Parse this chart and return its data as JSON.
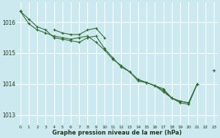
{
  "background_color": "#cde9f0",
  "grid_color": "#ffffff",
  "line_color": "#2d6a2d",
  "marker_color": "#2d6a2d",
  "xlabel": "Graphe pression niveau de la mer (hPa)",
  "xlabel_color": "#1a3a1a",
  "ylabel_color": "#1a3a1a",
  "xlim": [
    -0.5,
    23.5
  ],
  "ylim": [
    1012.7,
    1016.65
  ],
  "yticks": [
    1013,
    1014,
    1015,
    1016
  ],
  "xticks": [
    0,
    1,
    2,
    3,
    4,
    5,
    6,
    7,
    8,
    9,
    10,
    11,
    12,
    13,
    14,
    15,
    16,
    17,
    18,
    19,
    20,
    21,
    22,
    23
  ],
  "series": [
    [
      1016.35,
      1016.1,
      1015.85,
      1015.75,
      1015.5,
      1015.45,
      1015.4,
      1015.35,
      1015.5,
      1015.55,
      1015.15,
      1014.85,
      1014.55,
      1014.4,
      1014.1,
      1014.05,
      1013.95,
      1013.8,
      1013.55,
      1013.45,
      1013.4,
      1014.0,
      null,
      null
    ],
    [
      1016.35,
      1015.95,
      1015.75,
      1015.65,
      1015.55,
      1015.5,
      1015.45,
      1015.5,
      1015.55,
      1015.35,
      1015.1,
      1014.8,
      1014.6,
      1014.4,
      1014.15,
      1014.05,
      1013.95,
      1013.85,
      1013.55,
      1013.45,
      1013.4,
      1014.0,
      null,
      null
    ],
    [
      1016.35,
      null,
      null,
      null,
      1015.75,
      1015.65,
      1015.6,
      1015.6,
      1015.75,
      1015.8,
      1015.5,
      null,
      null,
      null,
      null,
      null,
      null,
      null,
      null,
      null,
      null,
      null,
      null,
      null
    ],
    [
      null,
      null,
      null,
      null,
      null,
      null,
      null,
      null,
      null,
      null,
      null,
      null,
      null,
      null,
      1014.15,
      1014.05,
      1013.95,
      1013.75,
      1013.55,
      1013.4,
      1013.35,
      1014.0,
      null,
      1014.45
    ],
    [
      1016.35,
      null,
      null,
      null,
      null,
      null,
      null,
      null,
      null,
      null,
      null,
      null,
      null,
      null,
      null,
      null,
      null,
      null,
      null,
      null,
      null,
      null,
      null,
      1014.45
    ]
  ]
}
